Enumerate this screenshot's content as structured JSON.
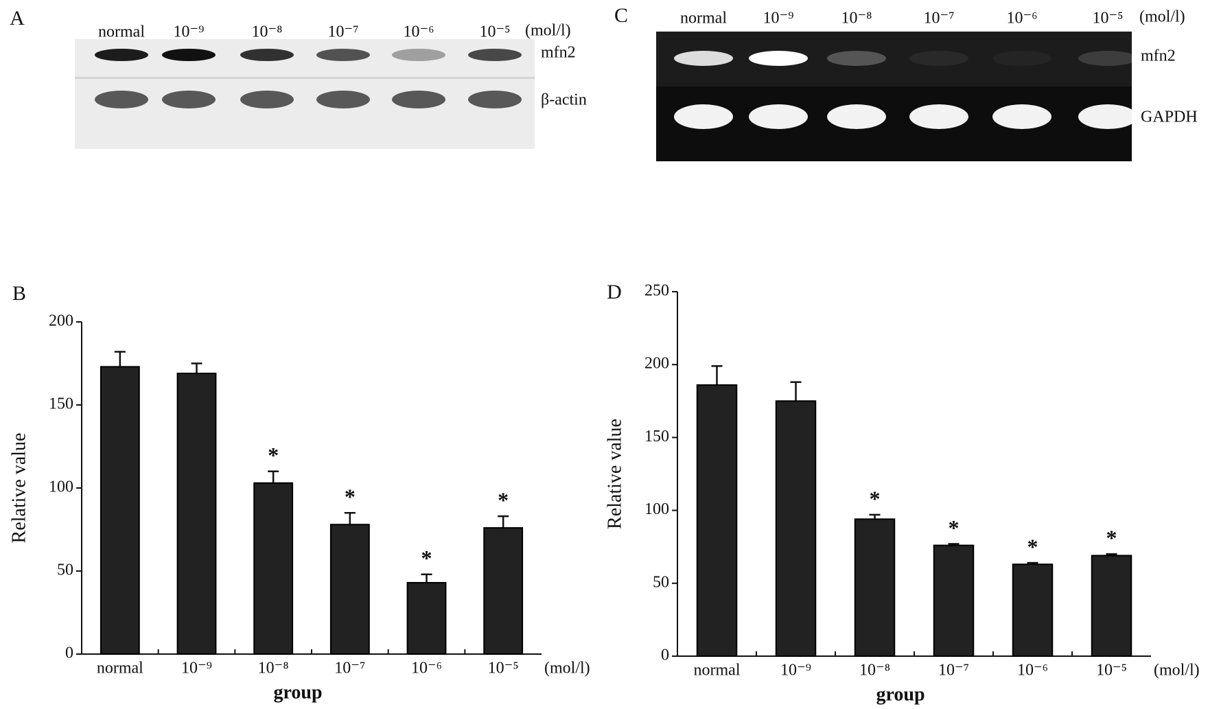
{
  "blot_a": {
    "letter": "A",
    "lanes": [
      "normal",
      "10⁻⁹",
      "10⁻⁸",
      "10⁻⁷",
      "10⁻⁶",
      "10⁻⁵"
    ],
    "unit": "(mol/l)",
    "rows": [
      "mfn2",
      "β-actin"
    ]
  },
  "blot_c": {
    "letter": "C",
    "lanes": [
      "normal",
      "10⁻⁹",
      "10⁻⁸",
      "10⁻⁷",
      "10⁻⁶",
      "10⁻⁵"
    ],
    "unit": "(mol/l)",
    "rows": [
      "mfn2",
      "GAPDH"
    ]
  },
  "chart_data": [
    {
      "type": "bar",
      "letter": "B",
      "categories": [
        "normal",
        "10⁻⁹",
        "10⁻⁸",
        "10⁻⁷",
        "10⁻⁶",
        "10⁻⁵"
      ],
      "values": [
        173,
        169,
        103,
        78,
        43,
        76
      ],
      "errors": [
        9,
        6,
        7,
        7,
        5,
        7
      ],
      "significance": [
        null,
        null,
        "*",
        "*",
        "*",
        "*"
      ],
      "color": "#222222",
      "ylim": [
        0,
        200
      ],
      "yticks": [
        0,
        50,
        100,
        150,
        200
      ],
      "ylabel": "Relative value",
      "xlabel": "group",
      "x_unit": "(mol/l)"
    },
    {
      "type": "bar",
      "letter": "D",
      "categories": [
        "normal",
        "10⁻⁹",
        "10⁻⁸",
        "10⁻⁷",
        "10⁻⁶",
        "10⁻⁵"
      ],
      "values": [
        186,
        175,
        94,
        76,
        63,
        69
      ],
      "errors": [
        13,
        13,
        3,
        1,
        1,
        1
      ],
      "significance": [
        null,
        null,
        "*",
        "*",
        "*",
        "*"
      ],
      "color": "#222222",
      "ylim": [
        0,
        250
      ],
      "yticks": [
        0,
        50,
        100,
        150,
        200,
        250
      ],
      "ylabel": "Relative value",
      "xlabel": "group",
      "x_unit": "(mol/l)"
    }
  ]
}
